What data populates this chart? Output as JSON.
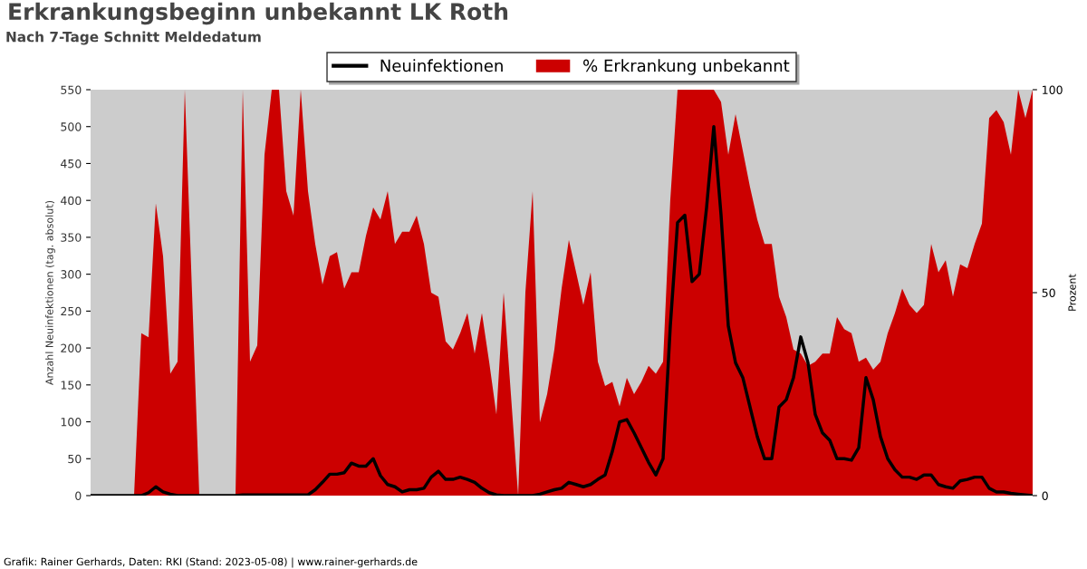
{
  "chart_data": {
    "type": "line",
    "title": "Erkrankungsbeginn unbekannt LK Roth",
    "subtitle": "Nach 7-Tage Schnitt Meldedatum",
    "ylabel": "Anzahl Neuinfektionen (tag. absolut)",
    "y2label": "Prozent",
    "categories": [
      null,
      null,
      null,
      null,
      null,
      null,
      null,
      null,
      null,
      null,
      null,
      null,
      null,
      null,
      null,
      null,
      null,
      null,
      null,
      null,
      null,
      null,
      null,
      null,
      null,
      null,
      null,
      null,
      null,
      null,
      null,
      null,
      null,
      null,
      null,
      null,
      null,
      null,
      null,
      null,
      null,
      null,
      null,
      null,
      null,
      null,
      null,
      null,
      null,
      null,
      null,
      null,
      null,
      null,
      null,
      null,
      null,
      null,
      null,
      null,
      null,
      null,
      null,
      null,
      null,
      null,
      null,
      null,
      null,
      null,
      null,
      null,
      null,
      null,
      null,
      null,
      null,
      null,
      null,
      null,
      null,
      null,
      null,
      null,
      null,
      null,
      null,
      null,
      null,
      null,
      null,
      null,
      null,
      null,
      null,
      null,
      null,
      null,
      null,
      null,
      null,
      null,
      null,
      null,
      null,
      null,
      null,
      null,
      null,
      null,
      null,
      null,
      null,
      null,
      null,
      null,
      null,
      null,
      null,
      null,
      null,
      null,
      null,
      null,
      null,
      null,
      null,
      null,
      null,
      null,
      null
    ],
    "series": [
      {
        "name": "% Erkrankung unbekannt",
        "type": "area",
        "axis": "y2",
        "color": "#cc0000",
        "values": [
          0,
          0,
          0,
          0,
          0,
          0,
          0,
          40,
          39,
          72,
          59,
          30,
          33,
          100,
          50,
          0,
          0,
          0,
          0,
          0,
          0,
          100,
          33,
          37,
          84,
          100,
          100,
          75,
          69,
          100,
          75,
          62,
          52,
          59,
          60,
          51,
          55,
          55,
          64,
          71,
          68,
          75,
          62,
          65,
          65,
          69,
          62,
          50,
          49,
          38,
          36,
          40,
          45,
          35,
          45,
          33,
          20,
          50,
          25,
          0,
          50,
          75,
          18,
          25,
          36,
          51,
          63,
          55,
          47,
          55,
          33,
          27,
          28,
          22,
          29,
          25,
          28,
          32,
          30,
          33,
          73,
          100,
          100,
          100,
          100,
          100,
          100,
          97,
          84,
          94,
          85,
          76,
          68,
          62,
          62,
          49,
          44,
          36,
          35,
          32,
          33,
          35,
          35,
          44,
          41,
          40,
          33,
          34,
          31,
          33,
          40,
          45,
          51,
          47,
          45,
          47,
          62,
          55,
          58,
          49,
          57,
          56,
          62,
          67,
          93,
          95,
          92,
          84,
          100,
          93,
          100
        ]
      },
      {
        "name": "Neuinfektionen",
        "color": "#000000",
        "values": [
          0,
          0,
          0,
          0,
          0,
          0,
          0,
          0,
          4,
          12,
          5,
          2,
          0,
          0,
          0,
          0,
          0,
          0,
          0,
          0,
          0,
          1,
          1,
          1,
          1,
          1,
          1,
          1,
          1,
          1,
          1,
          8,
          18,
          29,
          29,
          31,
          44,
          40,
          40,
          50,
          27,
          15,
          12,
          5,
          8,
          8,
          10,
          25,
          33,
          22,
          22,
          25,
          22,
          18,
          10,
          4,
          1,
          0,
          0,
          0,
          0,
          0,
          2,
          5,
          8,
          10,
          18,
          15,
          12,
          15,
          22,
          28,
          60,
          100,
          103,
          85,
          65,
          45,
          28,
          50,
          230,
          370,
          380,
          290,
          300,
          390,
          500,
          380,
          230,
          180,
          160,
          120,
          80,
          50,
          50,
          120,
          130,
          160,
          215,
          180,
          110,
          85,
          75,
          50,
          50,
          48,
          65,
          160,
          130,
          80,
          50,
          35,
          25,
          25,
          22,
          28,
          28,
          15,
          12,
          10,
          20,
          22,
          25,
          25,
          10,
          5,
          5,
          3,
          2,
          1,
          0
        ]
      }
    ],
    "ylim": [
      0,
      550
    ],
    "yticks": [
      0,
      50,
      100,
      150,
      200,
      250,
      300,
      350,
      400,
      450,
      500,
      550
    ],
    "y2lim": [
      0,
      100
    ],
    "y2ticks": [
      0,
      50,
      100
    ],
    "legend": "top",
    "grid": false,
    "annotations": [
      "Grafik: Rainer Gerhards, Daten: RKI (Stand: 2023-05-08) | www.rainer-gerhards.de"
    ]
  }
}
